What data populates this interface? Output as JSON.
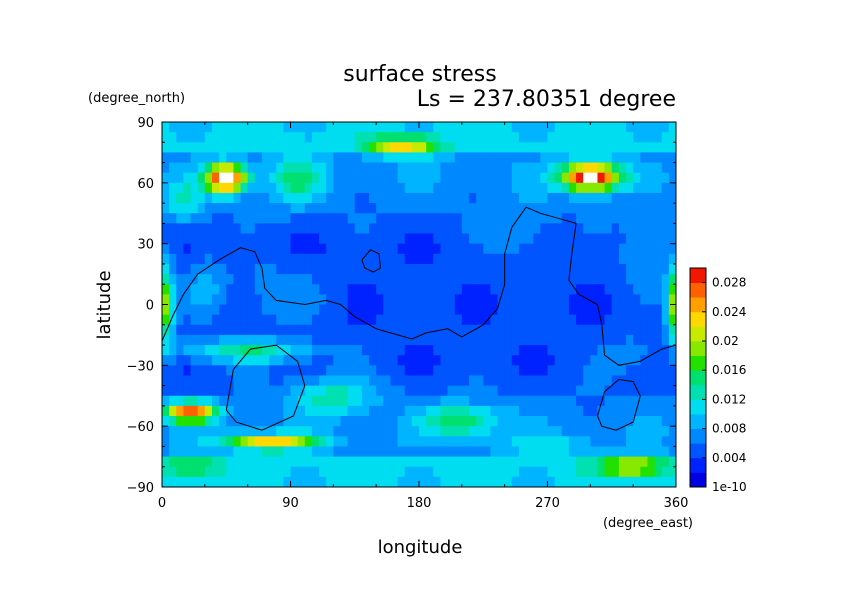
{
  "chart_data": {
    "type": "heatmap",
    "title": "surface stress",
    "subtitle": "Ls = 237.80351 degree",
    "xlabel": "longitude",
    "ylabel": "latitude",
    "x_unit": "(degree_east)",
    "y_unit": "(degree_north)",
    "xlim": [
      0,
      360
    ],
    "ylim": [
      -90,
      90
    ],
    "x_ticks": [
      "0",
      "90",
      "180",
      "270",
      "360"
    ],
    "x_tick_values": [
      0,
      90,
      180,
      270,
      360
    ],
    "y_ticks": [
      "90",
      "60",
      "30",
      "0",
      "−30",
      "−60",
      "−90"
    ],
    "y_tick_values": [
      90,
      60,
      30,
      0,
      -30,
      -60,
      -90
    ],
    "colorbar": {
      "labels": [
        "0.028",
        "0.024",
        "0.02",
        "0.016",
        "0.012",
        "0.008",
        "0.004",
        "1e-10"
      ],
      "label_values": [
        0.028,
        0.024,
        0.02,
        0.016,
        0.012,
        0.008,
        0.004,
        0
      ],
      "max": 0.03,
      "levels": 15,
      "colors": [
        "#0000e0",
        "#0022ff",
        "#0055ff",
        "#0088ff",
        "#00b4ff",
        "#00dcf0",
        "#00e0b0",
        "#00e070",
        "#22e000",
        "#88e800",
        "#c8ea00",
        "#ffd800",
        "#ffa000",
        "#ff6000",
        "#f01800"
      ]
    },
    "hotspots": [
      {
        "lon": 0,
        "lat": 0,
        "value": 0.02,
        "spread_lon": 8,
        "spread_lat": 20
      },
      {
        "lon": 360,
        "lat": 0,
        "value": 0.022,
        "spread_lon": 6,
        "spread_lat": 18
      },
      {
        "lon": 45,
        "lat": 62,
        "value": 0.031,
        "spread_lon": 14,
        "spread_lat": 7
      },
      {
        "lon": 300,
        "lat": 63,
        "value": 0.031,
        "spread_lon": 20,
        "spread_lat": 7
      },
      {
        "lon": 170,
        "lat": 78,
        "value": 0.018,
        "spread_lon": 24,
        "spread_lat": 5
      },
      {
        "lon": 95,
        "lat": 62,
        "value": 0.012,
        "spread_lon": 18,
        "spread_lat": 12
      },
      {
        "lon": 15,
        "lat": 50,
        "value": 0.011,
        "spread_lon": 12,
        "spread_lat": 10
      },
      {
        "lon": 20,
        "lat": -53,
        "value": 0.026,
        "spread_lon": 18,
        "spread_lat": 5
      },
      {
        "lon": 75,
        "lat": -68,
        "value": 0.022,
        "spread_lon": 32,
        "spread_lat": 4
      },
      {
        "lon": 60,
        "lat": -23,
        "value": 0.014,
        "spread_lon": 50,
        "spread_lat": 6
      },
      {
        "lon": 210,
        "lat": -57,
        "value": 0.014,
        "spread_lon": 26,
        "spread_lat": 8
      },
      {
        "lon": 120,
        "lat": -45,
        "value": 0.012,
        "spread_lon": 30,
        "spread_lat": 10
      },
      {
        "lon": 20,
        "lat": -80,
        "value": 0.012,
        "spread_lon": 20,
        "spread_lat": 5
      },
      {
        "lon": 330,
        "lat": -80,
        "value": 0.016,
        "spread_lon": 25,
        "spread_lat": 5
      },
      {
        "lon": 270,
        "lat": -70,
        "value": 0.009,
        "spread_lon": 30,
        "spread_lat": 6
      },
      {
        "lon": 330,
        "lat": -25,
        "value": 0.008,
        "spread_lon": 20,
        "spread_lat": 10
      },
      {
        "lon": 80,
        "lat": 5,
        "value": 0.008,
        "spread_lon": 30,
        "spread_lat": 15
      },
      {
        "lon": 30,
        "lat": 10,
        "value": 0.009,
        "spread_lon": 15,
        "spread_lat": 15
      },
      {
        "lon": 250,
        "lat": 35,
        "value": 0.008,
        "spread_lon": 20,
        "spread_lat": 15
      },
      {
        "lon": 340,
        "lat": 25,
        "value": 0.009,
        "spread_lon": 20,
        "spread_lat": 15
      }
    ],
    "contours": [
      {
        "name": "topography-contour-west",
        "points": [
          [
            0,
            -18
          ],
          [
            8,
            -5
          ],
          [
            15,
            5
          ],
          [
            25,
            15
          ],
          [
            40,
            22
          ],
          [
            55,
            28
          ],
          [
            65,
            26
          ],
          [
            70,
            18
          ],
          [
            72,
            8
          ],
          [
            80,
            2
          ],
          [
            100,
            0
          ],
          [
            115,
            2
          ],
          [
            125,
            0
          ],
          [
            135,
            -6
          ],
          [
            150,
            -12
          ],
          [
            165,
            -15
          ],
          [
            175,
            -17
          ],
          [
            185,
            -14
          ],
          [
            200,
            -12
          ],
          [
            210,
            -16
          ],
          [
            225,
            -10
          ],
          [
            235,
            -2
          ],
          [
            240,
            10
          ],
          [
            240,
            25
          ],
          [
            245,
            38
          ],
          [
            255,
            48
          ],
          [
            265,
            45
          ],
          [
            280,
            42
          ],
          [
            290,
            40
          ],
          [
            287,
            25
          ],
          [
            285,
            12
          ],
          [
            292,
            5
          ],
          [
            305,
            0
          ],
          [
            308,
            -10
          ],
          [
            310,
            -25
          ],
          [
            320,
            -30
          ],
          [
            335,
            -28
          ],
          [
            350,
            -22
          ],
          [
            360,
            -20
          ]
        ]
      },
      {
        "name": "topography-contour-blob",
        "points": [
          [
            140,
            22
          ],
          [
            146,
            27
          ],
          [
            152,
            25
          ],
          [
            153,
            18
          ],
          [
            148,
            16
          ],
          [
            142,
            18
          ],
          [
            140,
            22
          ]
        ]
      },
      {
        "name": "topography-contour-hellas",
        "points": [
          [
            45,
            -52
          ],
          [
            50,
            -32
          ],
          [
            62,
            -22
          ],
          [
            80,
            -20
          ],
          [
            95,
            -28
          ],
          [
            100,
            -40
          ],
          [
            92,
            -55
          ],
          [
            70,
            -62
          ],
          [
            52,
            -58
          ],
          [
            45,
            -52
          ]
        ]
      },
      {
        "name": "topography-contour-argyre",
        "points": [
          [
            305,
            -55
          ],
          [
            310,
            -43
          ],
          [
            320,
            -37
          ],
          [
            330,
            -38
          ],
          [
            335,
            -45
          ],
          [
            330,
            -58
          ],
          [
            318,
            -62
          ],
          [
            308,
            -60
          ],
          [
            305,
            -55
          ]
        ]
      }
    ]
  }
}
